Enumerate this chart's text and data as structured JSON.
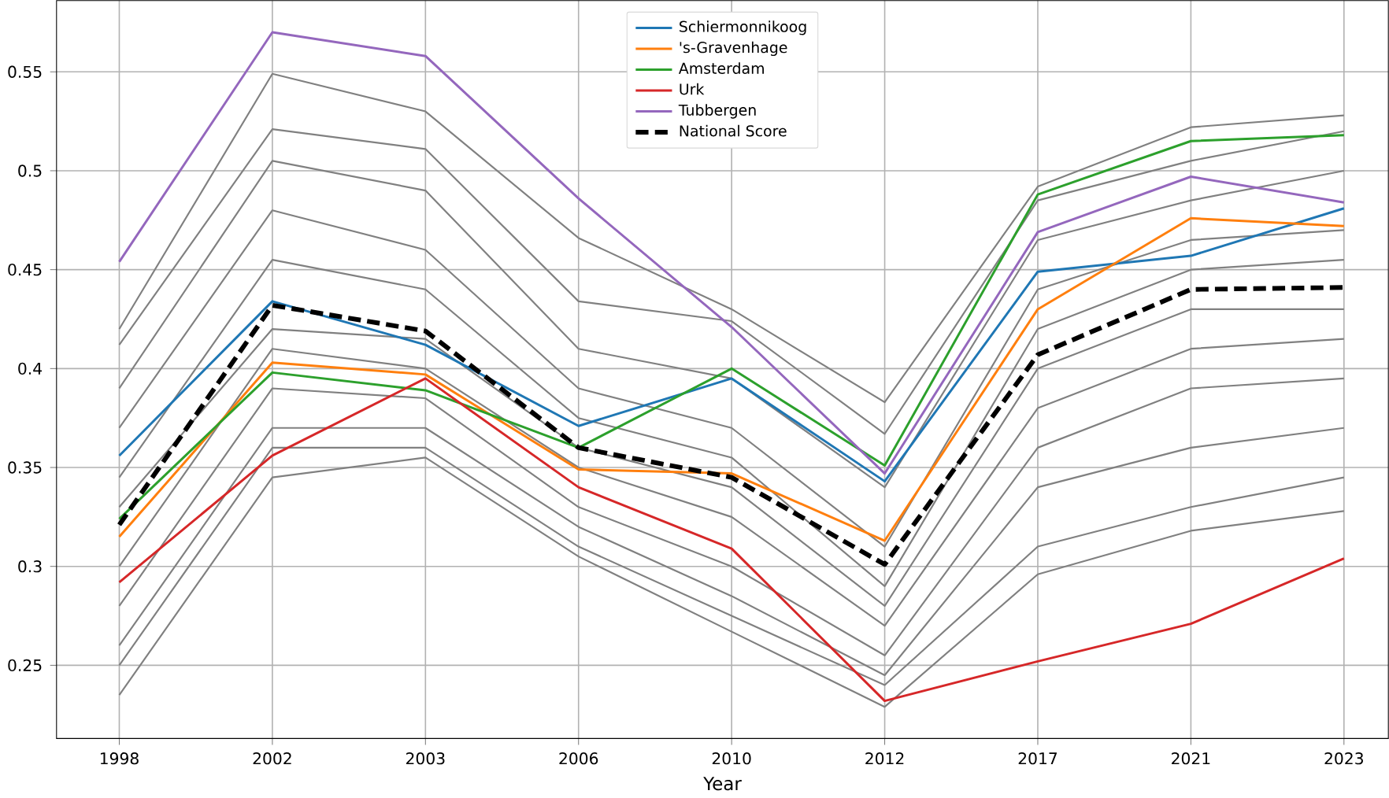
{
  "chart_data": {
    "type": "line",
    "xlabel": "Year",
    "categories": [
      "1998",
      "2002",
      "2003",
      "2006",
      "2010",
      "2012",
      "2017",
      "2021",
      "2023"
    ],
    "ylim": [
      0.213,
      0.586
    ],
    "yticks": [
      0.25,
      0.3,
      0.35,
      0.4,
      0.45,
      0.5,
      0.55
    ],
    "grid": true,
    "legend": "top",
    "series": [
      {
        "color": "#808080",
        "values": [
          0.42,
          0.549,
          0.53,
          0.466,
          0.43,
          0.383,
          0.492,
          0.522,
          0.528
        ]
      },
      {
        "color": "#808080",
        "values": [
          0.412,
          0.521,
          0.511,
          0.434,
          0.424,
          0.367,
          0.485,
          0.505,
          0.52
        ]
      },
      {
        "color": "#808080",
        "values": [
          0.39,
          0.505,
          0.49,
          0.41,
          0.395,
          0.34,
          0.465,
          0.485,
          0.5
        ]
      },
      {
        "color": "#808080",
        "values": [
          0.37,
          0.48,
          0.46,
          0.39,
          0.37,
          0.31,
          0.44,
          0.465,
          0.47
        ]
      },
      {
        "color": "#808080",
        "values": [
          0.345,
          0.455,
          0.44,
          0.375,
          0.355,
          0.29,
          0.42,
          0.45,
          0.455
        ]
      },
      {
        "color": "#808080",
        "values": [
          0.33,
          0.42,
          0.415,
          0.36,
          0.34,
          0.28,
          0.4,
          0.43,
          0.43
        ]
      },
      {
        "color": "#808080",
        "values": [
          0.3,
          0.41,
          0.4,
          0.35,
          0.325,
          0.27,
          0.38,
          0.41,
          0.415
        ]
      },
      {
        "color": "#808080",
        "values": [
          0.28,
          0.39,
          0.385,
          0.33,
          0.3,
          0.255,
          0.36,
          0.39,
          0.395
        ]
      },
      {
        "color": "#808080",
        "values": [
          0.26,
          0.37,
          0.37,
          0.32,
          0.285,
          0.245,
          0.34,
          0.36,
          0.37
        ]
      },
      {
        "color": "#808080",
        "values": [
          0.25,
          0.36,
          0.36,
          0.31,
          0.275,
          0.24,
          0.31,
          0.33,
          0.345
        ]
      },
      {
        "color": "#808080",
        "values": [
          0.235,
          0.345,
          0.355,
          0.305,
          0.267,
          0.229,
          0.296,
          0.318,
          0.328
        ]
      },
      {
        "name": "Schiermonnikoog",
        "color": "#1f77b4",
        "values": [
          0.356,
          0.434,
          0.412,
          0.371,
          0.395,
          0.343,
          0.449,
          0.457,
          0.481
        ]
      },
      {
        "name": "'s-Gravenhage",
        "color": "#ff7f0e",
        "values": [
          0.315,
          0.403,
          0.397,
          0.349,
          0.347,
          0.313,
          0.43,
          0.476,
          0.472
        ]
      },
      {
        "name": "Amsterdam",
        "color": "#2ca02c",
        "values": [
          0.324,
          0.398,
          0.389,
          0.36,
          0.4,
          0.351,
          0.488,
          0.515,
          0.518
        ]
      },
      {
        "name": "Urk",
        "color": "#d62728",
        "values": [
          0.292,
          0.356,
          0.395,
          0.34,
          0.309,
          0.232,
          0.252,
          0.271,
          0.304
        ]
      },
      {
        "name": "Tubbergen",
        "color": "#9467bd",
        "values": [
          0.454,
          0.57,
          0.558,
          0.486,
          0.421,
          0.347,
          0.469,
          0.497,
          0.484
        ]
      },
      {
        "name": "National Score",
        "color": "#000000",
        "line_style": "dashed",
        "values": [
          0.321,
          0.432,
          0.419,
          0.36,
          0.345,
          0.301,
          0.407,
          0.44,
          0.441
        ]
      }
    ]
  }
}
